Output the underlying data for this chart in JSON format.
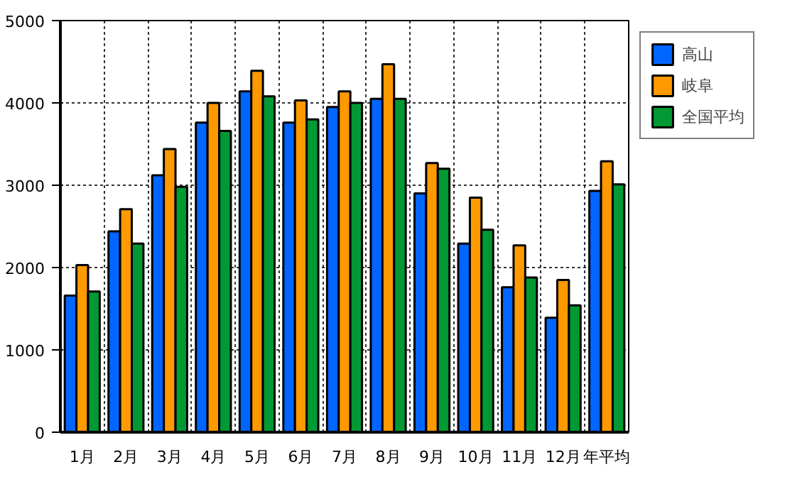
{
  "chart_data": {
    "type": "bar",
    "categories": [
      "1月",
      "2月",
      "3月",
      "4月",
      "5月",
      "6月",
      "7月",
      "8月",
      "9月",
      "10月",
      "11月",
      "12月",
      "年平均"
    ],
    "series": [
      {
        "name": "高山",
        "color": "#0066ff",
        "values": [
          1660,
          2440,
          3120,
          3760,
          4140,
          3760,
          3950,
          4050,
          2900,
          2290,
          1760,
          1390,
          2930
        ]
      },
      {
        "name": "岐阜",
        "color": "#ff9900",
        "values": [
          2030,
          2710,
          3440,
          4000,
          4390,
          4030,
          4140,
          4470,
          3270,
          2850,
          2270,
          1850,
          3290
        ]
      },
      {
        "name": "全国平均",
        "color": "#009933",
        "values": [
          1710,
          2290,
          2980,
          3660,
          4080,
          3800,
          4000,
          4050,
          3200,
          2460,
          1880,
          1540,
          3010
        ]
      }
    ],
    "ylim": [
      0,
      5000
    ],
    "yticks": [
      0,
      1000,
      2000,
      3000,
      4000,
      5000
    ],
    "grid": true,
    "legend": "top right"
  }
}
